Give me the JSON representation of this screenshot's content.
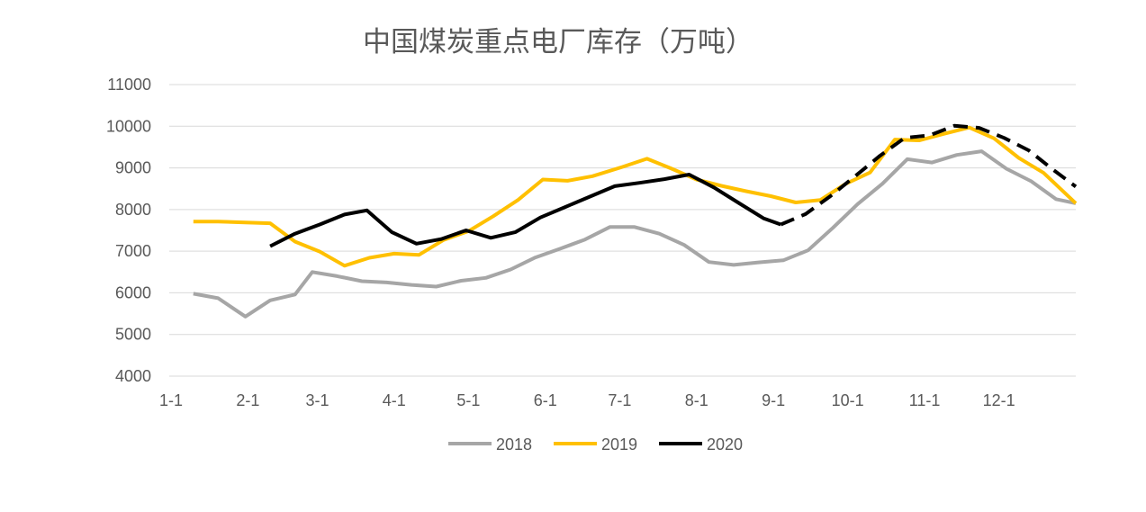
{
  "chart_data": {
    "type": "line",
    "title": "中国煤炭重点电厂库存（万吨）",
    "xlabel": "",
    "ylabel": "",
    "ylim": [
      4000,
      11000
    ],
    "yticks": [
      4000,
      5000,
      6000,
      7000,
      8000,
      9000,
      10000,
      11000
    ],
    "x_tick_labels": [
      "1-1",
      "2-1",
      "3-1",
      "4-1",
      "5-1",
      "6-1",
      "7-1",
      "8-1",
      "9-1",
      "10-1",
      "11-1",
      "12-1"
    ],
    "x_tick_positions": [
      0,
      31,
      59,
      90,
      120,
      151,
      181,
      212,
      243,
      273,
      304,
      334
    ],
    "xlim": [
      0,
      365
    ],
    "x_unit": "day of year",
    "grid": true,
    "legend_position": "bottom",
    "series": [
      {
        "name": "2018",
        "color": "#a6a6a6",
        "dash": "solid",
        "x": [
          9,
          19,
          30,
          40,
          50,
          57,
          67,
          77,
          87,
          97,
          107,
          117,
          127,
          137,
          147,
          157,
          167,
          177,
          187,
          197,
          207,
          217,
          227,
          237,
          247,
          257,
          267,
          277,
          287,
          297,
          307,
          317,
          327,
          337,
          347,
          357,
          365
        ],
        "values": [
          5980,
          5870,
          5430,
          5820,
          5960,
          6500,
          6400,
          6280,
          6250,
          6190,
          6150,
          6290,
          6360,
          6560,
          6850,
          7060,
          7280,
          7580,
          7580,
          7420,
          7150,
          6740,
          6670,
          6730,
          6780,
          7020,
          7560,
          8130,
          8620,
          9210,
          9130,
          9310,
          9400,
          8980,
          8680,
          8250,
          8150
        ]
      },
      {
        "name": "2019",
        "color": "#ffc000",
        "dash": "solid",
        "x": [
          9,
          19,
          30,
          40,
          50,
          60,
          70,
          80,
          90,
          100,
          110,
          120,
          130,
          140,
          150,
          160,
          170,
          182,
          192,
          202,
          212,
          222,
          232,
          242,
          252,
          262,
          272,
          282,
          292,
          302,
          312,
          322,
          332,
          342,
          352,
          365
        ],
        "values": [
          7710,
          7710,
          7690,
          7670,
          7230,
          6990,
          6650,
          6840,
          6940,
          6910,
          7270,
          7480,
          7840,
          8230,
          8720,
          8690,
          8800,
          9020,
          9220,
          8980,
          8720,
          8570,
          8440,
          8320,
          8170,
          8230,
          8610,
          8890,
          9680,
          9660,
          9820,
          9970,
          9710,
          9240,
          8880,
          8150
        ]
      },
      {
        "name": "2020",
        "color": "#000000",
        "dash": "solid",
        "x": [
          40,
          50,
          60,
          70,
          79,
          89,
          99,
          109,
          119,
          129,
          139,
          149,
          159,
          169,
          179,
          189,
          199,
          209,
          219,
          229,
          239,
          246
        ],
        "values": [
          7120,
          7420,
          7640,
          7880,
          7980,
          7460,
          7180,
          7290,
          7500,
          7320,
          7460,
          7810,
          8060,
          8310,
          8560,
          8640,
          8730,
          8840,
          8530,
          8160,
          7790,
          7640
        ]
      },
      {
        "name": "",
        "color": "#000000",
        "dash": "dashed",
        "x": [
          246,
          256,
          266,
          276,
          286,
          296,
          306,
          316,
          326,
          336,
          346,
          356,
          365
        ],
        "values": [
          7640,
          7890,
          8320,
          8800,
          9290,
          9720,
          9780,
          10010,
          9960,
          9720,
          9420,
          8950,
          8550
        ]
      }
    ]
  }
}
